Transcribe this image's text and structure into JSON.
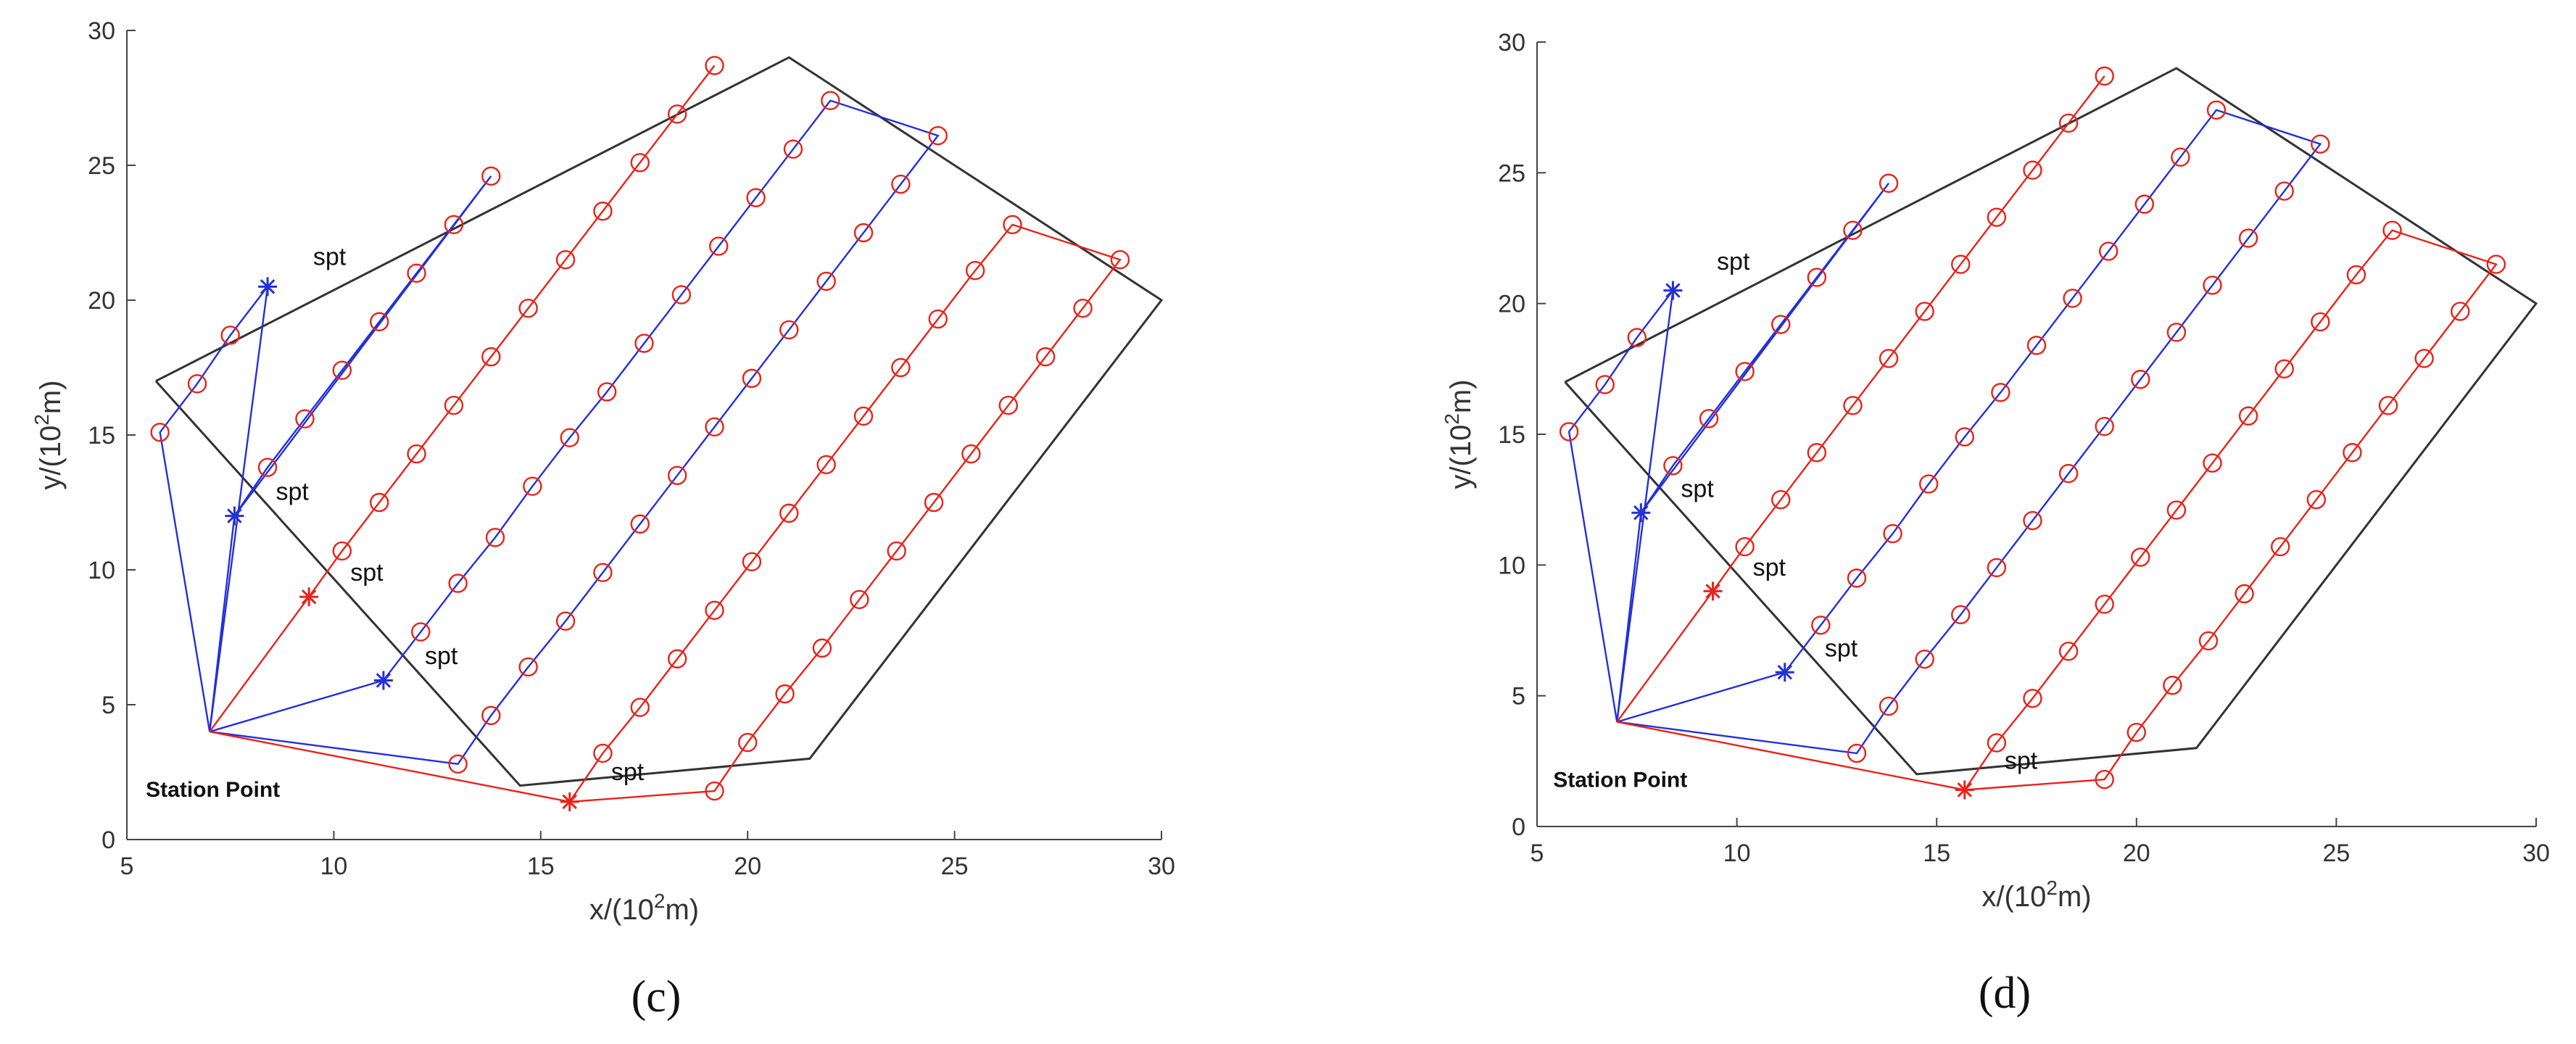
{
  "panels": [
    {
      "caption": "(c)",
      "chart_data": {
        "type": "line",
        "xlabel": "x/(10",
        "xlabel_sup": "2",
        "xlabel_end": "m)",
        "ylabel": "y/(10",
        "ylabel_sup": "2",
        "ylabel_end": "m)",
        "xlim": [
          5,
          30
        ],
        "ylim": [
          0,
          30
        ],
        "xticks": [
          "5",
          "10",
          "15",
          "20",
          "25",
          "30"
        ],
        "yticks": [
          "0",
          "5",
          "10",
          "15",
          "20",
          "25",
          "30"
        ],
        "grid": false,
        "colors": {
          "boundary": "#333333",
          "red": "#e8231a",
          "blue": "#2430d8"
        },
        "boundary": [
          [
            5.7,
            17.0
          ],
          [
            21.0,
            29.0
          ],
          [
            30.0,
            20.0
          ],
          [
            21.5,
            3.0
          ],
          [
            14.5,
            2.0
          ],
          [
            5.7,
            17.0
          ]
        ],
        "station": {
          "x": 7.0,
          "y": 4.0,
          "label": "Station Point"
        },
        "routes": [
          {
            "color": "blue",
            "points": [
              [
                7.0,
                4.0
              ],
              [
                8.4,
                20.5
              ],
              [
                7.5,
                18.7
              ],
              [
                6.7,
                16.9
              ],
              [
                5.8,
                15.1
              ],
              [
                7.0,
                4.0
              ]
            ]
          },
          {
            "color": "blue",
            "points": [
              [
                7.0,
                4.0
              ],
              [
                7.6,
                12.0
              ],
              [
                8.4,
                13.8
              ],
              [
                9.3,
                15.6
              ],
              [
                10.2,
                17.4
              ],
              [
                11.1,
                19.2
              ],
              [
                12.0,
                21.0
              ],
              [
                12.9,
                22.8
              ],
              [
                13.8,
                24.6
              ],
              [
                7.6,
                12.0
              ]
            ]
          },
          {
            "color": "red",
            "points": [
              [
                7.0,
                4.0
              ],
              [
                9.4,
                9.0
              ],
              [
                10.2,
                10.7
              ],
              [
                11.1,
                12.5
              ],
              [
                12.0,
                14.3
              ],
              [
                12.9,
                16.1
              ],
              [
                13.8,
                17.9
              ],
              [
                14.7,
                19.7
              ],
              [
                15.6,
                21.5
              ],
              [
                16.5,
                23.3
              ],
              [
                17.4,
                25.1
              ],
              [
                18.3,
                26.9
              ],
              [
                19.2,
                28.7
              ]
            ]
          },
          {
            "color": "blue",
            "points": [
              [
                7.0,
                4.0
              ],
              [
                11.2,
                5.9
              ],
              [
                12.1,
                7.7
              ],
              [
                13.0,
                9.5
              ],
              [
                13.9,
                11.2
              ],
              [
                14.8,
                13.1
              ],
              [
                15.7,
                14.9
              ],
              [
                16.6,
                16.6
              ],
              [
                17.5,
                18.4
              ],
              [
                18.4,
                20.2
              ],
              [
                19.3,
                22.0
              ],
              [
                20.2,
                23.8
              ],
              [
                21.1,
                25.6
              ],
              [
                22.0,
                27.4
              ],
              [
                24.6,
                26.1
              ],
              [
                23.7,
                24.3
              ],
              [
                22.8,
                22.5
              ],
              [
                21.9,
                20.7
              ],
              [
                21.0,
                18.9
              ],
              [
                20.1,
                17.1
              ],
              [
                19.2,
                15.3
              ],
              [
                18.3,
                13.5
              ],
              [
                17.4,
                11.7
              ],
              [
                16.5,
                9.9
              ],
              [
                15.6,
                8.1
              ],
              [
                14.7,
                6.4
              ],
              [
                13.8,
                4.6
              ],
              [
                13.0,
                2.8
              ],
              [
                7.0,
                4.0
              ]
            ]
          },
          {
            "color": "red",
            "points": [
              [
                7.0,
                4.0
              ],
              [
                15.7,
                1.4
              ],
              [
                16.5,
                3.2
              ],
              [
                17.4,
                4.9
              ],
              [
                18.3,
                6.7
              ],
              [
                19.2,
                8.5
              ],
              [
                20.1,
                10.3
              ],
              [
                21.0,
                12.1
              ],
              [
                21.9,
                13.9
              ],
              [
                22.8,
                15.7
              ],
              [
                23.7,
                17.5
              ],
              [
                24.6,
                19.3
              ],
              [
                25.5,
                21.1
              ],
              [
                26.4,
                22.8
              ],
              [
                29.0,
                21.5
              ],
              [
                28.1,
                19.7
              ],
              [
                27.2,
                17.9
              ],
              [
                26.3,
                16.1
              ],
              [
                25.4,
                14.3
              ],
              [
                24.5,
                12.5
              ],
              [
                23.6,
                10.7
              ],
              [
                22.7,
                8.9
              ],
              [
                21.8,
                7.1
              ],
              [
                20.9,
                5.4
              ],
              [
                20.0,
                3.6
              ],
              [
                19.2,
                1.8
              ],
              [
                15.7,
                1.4
              ]
            ]
          }
        ],
        "waypoints": [
          {
            "x": 8.4,
            "y": 20.5,
            "color": "blue"
          },
          {
            "x": 7.6,
            "y": 12.0,
            "color": "blue"
          },
          {
            "x": 9.4,
            "y": 9.0,
            "color": "red"
          },
          {
            "x": 11.2,
            "y": 5.9,
            "color": "blue"
          },
          {
            "x": 15.7,
            "y": 1.4,
            "color": "red"
          }
        ],
        "annotations": [
          {
            "text": "spt",
            "x": 9.5,
            "y": 21.3
          },
          {
            "text": "spt",
            "x": 8.6,
            "y": 12.6
          },
          {
            "text": "spt",
            "x": 10.4,
            "y": 9.6
          },
          {
            "text": "spt",
            "x": 12.2,
            "y": 6.5
          },
          {
            "text": "spt",
            "x": 16.7,
            "y": 2.2
          }
        ]
      }
    },
    {
      "caption": "(d)",
      "chart_data": {
        "type": "line",
        "xlabel": "x/(10",
        "xlabel_sup": "2",
        "xlabel_end": "m)",
        "ylabel": "y/(10",
        "ylabel_sup": "2",
        "ylabel_end": "m)",
        "xlim": [
          5,
          30
        ],
        "ylim": [
          0,
          30
        ],
        "xticks": [
          "5",
          "10",
          "15",
          "20",
          "25",
          "30"
        ],
        "yticks": [
          "0",
          "5",
          "10",
          "15",
          "20",
          "25",
          "30"
        ],
        "grid": false,
        "colors": {
          "boundary": "#333333",
          "red": "#e8231a",
          "blue": "#2430d8"
        },
        "boundary": [
          [
            5.7,
            17.0
          ],
          [
            21.0,
            29.0
          ],
          [
            30.0,
            20.0
          ],
          [
            21.5,
            3.0
          ],
          [
            14.5,
            2.0
          ],
          [
            5.7,
            17.0
          ]
        ],
        "station": {
          "x": 7.0,
          "y": 4.0,
          "label": "Station Point"
        },
        "routes": [
          {
            "color": "blue",
            "points": [
              [
                7.0,
                4.0
              ],
              [
                8.4,
                20.5
              ],
              [
                7.5,
                18.7
              ],
              [
                6.7,
                16.9
              ],
              [
                5.8,
                15.1
              ],
              [
                7.0,
                4.0
              ]
            ]
          },
          {
            "color": "blue",
            "points": [
              [
                7.0,
                4.0
              ],
              [
                7.6,
                12.0
              ],
              [
                8.4,
                13.8
              ],
              [
                9.3,
                15.6
              ],
              [
                10.2,
                17.4
              ],
              [
                11.1,
                19.2
              ],
              [
                12.0,
                21.0
              ],
              [
                12.9,
                22.8
              ],
              [
                13.8,
                24.6
              ],
              [
                7.6,
                12.0
              ]
            ]
          },
          {
            "color": "red",
            "points": [
              [
                7.0,
                4.0
              ],
              [
                9.4,
                9.0
              ],
              [
                10.2,
                10.7
              ],
              [
                11.1,
                12.5
              ],
              [
                12.0,
                14.3
              ],
              [
                12.9,
                16.1
              ],
              [
                13.8,
                17.9
              ],
              [
                14.7,
                19.7
              ],
              [
                15.6,
                21.5
              ],
              [
                16.5,
                23.3
              ],
              [
                17.4,
                25.1
              ],
              [
                18.3,
                26.9
              ],
              [
                19.2,
                28.7
              ]
            ]
          },
          {
            "color": "blue",
            "points": [
              [
                7.0,
                4.0
              ],
              [
                11.2,
                5.9
              ],
              [
                12.1,
                7.7
              ],
              [
                13.0,
                9.5
              ],
              [
                13.9,
                11.2
              ],
              [
                14.8,
                13.1
              ],
              [
                15.7,
                14.9
              ],
              [
                16.6,
                16.6
              ],
              [
                17.5,
                18.4
              ],
              [
                18.4,
                20.2
              ],
              [
                19.3,
                22.0
              ],
              [
                20.2,
                23.8
              ],
              [
                21.1,
                25.6
              ],
              [
                22.0,
                27.4
              ],
              [
                24.6,
                26.1
              ],
              [
                23.7,
                24.3
              ],
              [
                22.8,
                22.5
              ],
              [
                21.9,
                20.7
              ],
              [
                21.0,
                18.9
              ],
              [
                20.1,
                17.1
              ],
              [
                19.2,
                15.3
              ],
              [
                18.3,
                13.5
              ],
              [
                17.4,
                11.7
              ],
              [
                16.5,
                9.9
              ],
              [
                15.6,
                8.1
              ],
              [
                14.7,
                6.4
              ],
              [
                13.8,
                4.6
              ],
              [
                13.0,
                2.8
              ],
              [
                7.0,
                4.0
              ]
            ]
          },
          {
            "color": "red",
            "points": [
              [
                7.0,
                4.0
              ],
              [
                15.7,
                1.4
              ],
              [
                16.5,
                3.2
              ],
              [
                17.4,
                4.9
              ],
              [
                18.3,
                6.7
              ],
              [
                19.2,
                8.5
              ],
              [
                20.1,
                10.3
              ],
              [
                21.0,
                12.1
              ],
              [
                21.9,
                13.9
              ],
              [
                22.8,
                15.7
              ],
              [
                23.7,
                17.5
              ],
              [
                24.6,
                19.3
              ],
              [
                25.5,
                21.1
              ],
              [
                26.4,
                22.8
              ],
              [
                29.0,
                21.5
              ],
              [
                28.1,
                19.7
              ],
              [
                27.2,
                17.9
              ],
              [
                26.3,
                16.1
              ],
              [
                25.4,
                14.3
              ],
              [
                24.5,
                12.5
              ],
              [
                23.6,
                10.7
              ],
              [
                22.7,
                8.9
              ],
              [
                21.8,
                7.1
              ],
              [
                20.9,
                5.4
              ],
              [
                20.0,
                3.6
              ],
              [
                19.2,
                1.8
              ],
              [
                15.7,
                1.4
              ]
            ]
          }
        ],
        "waypoints": [
          {
            "x": 8.4,
            "y": 20.5,
            "color": "blue"
          },
          {
            "x": 7.6,
            "y": 12.0,
            "color": "blue"
          },
          {
            "x": 9.4,
            "y": 9.0,
            "color": "red"
          },
          {
            "x": 11.2,
            "y": 5.9,
            "color": "blue"
          },
          {
            "x": 15.7,
            "y": 1.4,
            "color": "red"
          }
        ],
        "annotations": [
          {
            "text": "spt",
            "x": 9.5,
            "y": 21.3
          },
          {
            "text": "spt",
            "x": 8.6,
            "y": 12.6
          },
          {
            "text": "spt",
            "x": 10.4,
            "y": 9.6
          },
          {
            "text": "spt",
            "x": 12.2,
            "y": 6.5
          },
          {
            "text": "spt",
            "x": 16.7,
            "y": 2.2
          }
        ]
      }
    }
  ]
}
